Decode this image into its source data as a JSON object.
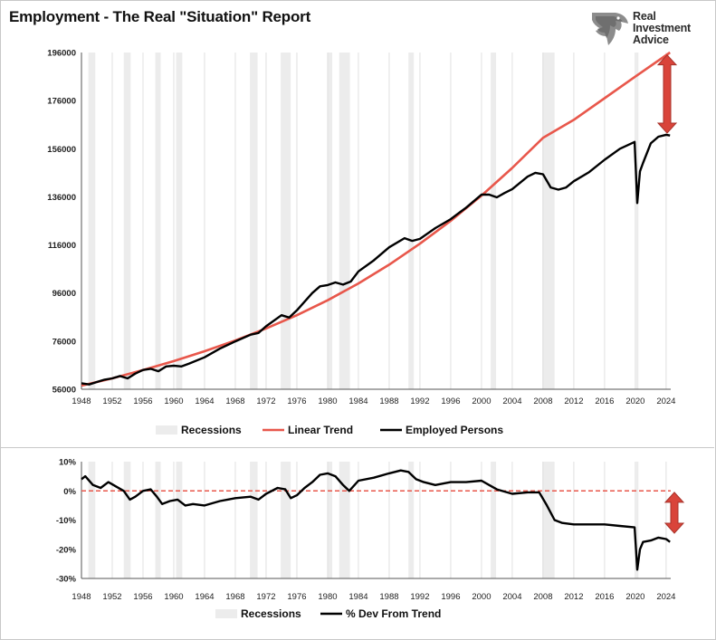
{
  "title": "Employment - The Real \"Situation\" Report",
  "logo": {
    "line1": "Real",
    "line2": "Investment",
    "line3": "Advice"
  },
  "colors": {
    "recession": "#ececec",
    "trend": "#e8574b",
    "series": "#000000",
    "arrow": "#d9443a",
    "grid": "#e0e0e0"
  },
  "chart_data": [
    {
      "type": "line",
      "title": "",
      "xlabel": "",
      "ylabel": "",
      "xlim": [
        1948,
        2024.6
      ],
      "ylim": [
        56000,
        196000
      ],
      "x_ticks": [
        1948,
        1952,
        1956,
        1960,
        1964,
        1968,
        1972,
        1976,
        1980,
        1984,
        1988,
        1992,
        1996,
        2000,
        2004,
        2008,
        2012,
        2016,
        2020,
        2024
      ],
      "y_ticks": [
        56000,
        76000,
        96000,
        116000,
        136000,
        156000,
        176000,
        196000
      ],
      "recessions": [
        [
          1948.9,
          1949.8
        ],
        [
          1953.5,
          1954.4
        ],
        [
          1957.6,
          1958.3
        ],
        [
          1960.3,
          1961.1
        ],
        [
          1969.9,
          1970.9
        ],
        [
          1973.9,
          1975.2
        ],
        [
          1980.0,
          1980.6
        ],
        [
          1981.5,
          1982.9
        ],
        [
          1990.5,
          1991.2
        ],
        [
          2001.2,
          2001.9
        ],
        [
          2007.9,
          2009.5
        ],
        [
          2020.1,
          2020.4
        ]
      ],
      "legend": [
        "Recessions",
        "Linear Trend",
        "Employed Persons"
      ],
      "legend_position": "bottom",
      "series": [
        {
          "name": "Linear Trend",
          "x": [
            1948,
            1952,
            1956,
            1960,
            1964,
            1968,
            1972,
            1976,
            1980,
            1984,
            1988,
            1992,
            1996,
            2000,
            2004,
            2008,
            2012,
            2016,
            2020,
            2024.5
          ],
          "values": [
            57500,
            60500,
            64000,
            67700,
            71800,
            76300,
            81300,
            86800,
            93000,
            100000,
            107800,
            116500,
            126000,
            136500,
            148000,
            160500,
            168000,
            177000,
            186000,
            196000
          ]
        },
        {
          "name": "Employed Persons",
          "x": [
            1948,
            1949,
            1950,
            1951,
            1952,
            1953,
            1954,
            1955,
            1956,
            1957,
            1958,
            1959,
            1960,
            1961,
            1962,
            1964,
            1966,
            1968,
            1970,
            1971,
            1972,
            1974,
            1975,
            1976,
            1978,
            1979,
            1980,
            1981,
            1982,
            1983,
            1984,
            1986,
            1988,
            1990,
            1991,
            1992,
            1994,
            1996,
            1998,
            2000,
            2001,
            2002,
            2003,
            2004,
            2006,
            2007,
            2008,
            2009,
            2010,
            2011,
            2012,
            2014,
            2016,
            2018,
            2019.9,
            2020.25,
            2020.6,
            2021,
            2022,
            2023,
            2024,
            2024.5
          ],
          "values": [
            58500,
            58000,
            59000,
            60000,
            60500,
            61500,
            60500,
            62500,
            64000,
            64500,
            63500,
            65500,
            65800,
            65500,
            66700,
            69300,
            72900,
            75900,
            78700,
            79400,
            82200,
            86800,
            85800,
            88800,
            96000,
            98800,
            99300,
            100400,
            99500,
            100800,
            105000,
            109600,
            115000,
            118800,
            117700,
            118500,
            123000,
            126700,
            131500,
            136900,
            136900,
            135800,
            137600,
            139200,
            144400,
            146000,
            145400,
            139900,
            139000,
            139900,
            142500,
            146300,
            151400,
            156000,
            158800,
            133400,
            146600,
            150100,
            158200,
            161000,
            161800,
            161500
          ]
        }
      ],
      "annotation": "double-arrow"
    },
    {
      "type": "line",
      "title": "",
      "xlabel": "",
      "ylabel": "",
      "xlim": [
        1948,
        2024.6
      ],
      "ylim": [
        -30,
        10
      ],
      "y_unit": "%",
      "x_ticks": [
        1948,
        1952,
        1956,
        1960,
        1964,
        1968,
        1972,
        1976,
        1980,
        1984,
        1988,
        1992,
        1996,
        2000,
        2004,
        2008,
        2012,
        2016,
        2020,
        2024
      ],
      "y_ticks": [
        -30,
        -20,
        -10,
        0,
        10
      ],
      "y_tick_labels": [
        "-30%",
        "-20%",
        "-10%",
        "0%",
        "10%"
      ],
      "recessions": [
        [
          1948.9,
          1949.8
        ],
        [
          1953.5,
          1954.4
        ],
        [
          1957.6,
          1958.3
        ],
        [
          1960.3,
          1961.1
        ],
        [
          1969.9,
          1970.9
        ],
        [
          1973.9,
          1975.2
        ],
        [
          1980.0,
          1980.6
        ],
        [
          1981.5,
          1982.9
        ],
        [
          1990.5,
          1991.2
        ],
        [
          2001.2,
          2001.9
        ],
        [
          2007.9,
          2009.5
        ],
        [
          2020.1,
          2020.4
        ]
      ],
      "legend": [
        "Recessions",
        "% Dev From Trend"
      ],
      "legend_position": "bottom",
      "reference_line": 0,
      "series": [
        {
          "name": "% Dev From Trend",
          "x": [
            1948,
            1948.5,
            1949.5,
            1950.5,
            1951.5,
            1952.5,
            1953.5,
            1954.3,
            1955,
            1956,
            1957,
            1957.8,
            1958.5,
            1959.5,
            1960.5,
            1961.5,
            1962.5,
            1964,
            1966,
            1968,
            1970,
            1971,
            1972,
            1973.5,
            1974.5,
            1975.2,
            1976,
            1977,
            1978,
            1979,
            1980,
            1981,
            1982,
            1982.8,
            1984,
            1986,
            1988,
            1989.5,
            1990.5,
            1991.5,
            1992.5,
            1994,
            1996,
            1998,
            2000,
            2001,
            2002,
            2004,
            2006,
            2007.5,
            2008.5,
            2009.5,
            2010.5,
            2012,
            2014,
            2016,
            2018,
            2019.9,
            2020.25,
            2020.6,
            2021,
            2022,
            2023,
            2024,
            2024.5
          ],
          "values": [
            4,
            5,
            2,
            1,
            3,
            1.5,
            0,
            -3,
            -2,
            0,
            0.5,
            -2,
            -4.5,
            -3.5,
            -3,
            -5,
            -4.5,
            -5,
            -3.5,
            -2.5,
            -2,
            -3,
            -1,
            1,
            0.5,
            -2.5,
            -1.5,
            1,
            3,
            5.5,
            6,
            5,
            2,
            0,
            3.5,
            4.5,
            6,
            7,
            6.5,
            4,
            3,
            2,
            3,
            3,
            3.5,
            2,
            0.5,
            -1,
            -0.5,
            -0.5,
            -5,
            -10,
            -11,
            -11.5,
            -11.5,
            -11.5,
            -12,
            -12.5,
            -27,
            -20,
            -17.5,
            -17,
            -16,
            -16.5,
            -17.5
          ]
        }
      ],
      "annotation": "double-arrow"
    }
  ]
}
